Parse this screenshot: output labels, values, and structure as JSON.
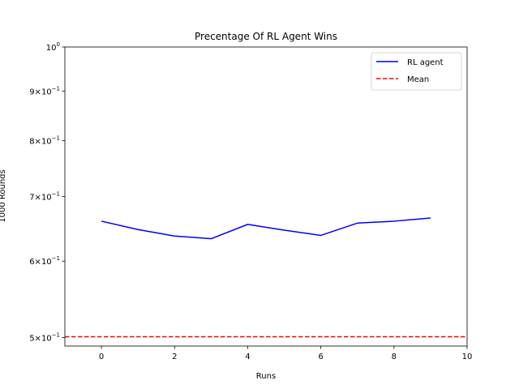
{
  "chart_data": {
    "type": "line",
    "title": "Precentage Of RL Agent Wins",
    "xlabel": "Runs",
    "ylabel": "1000 Rounds",
    "xlim": [
      -1,
      10
    ],
    "ylim": [
      0.49,
      1.0
    ],
    "yscale": "log",
    "x_ticks": [
      0,
      2,
      4,
      6,
      8,
      10
    ],
    "x_tick_labels": [
      "0",
      "2",
      "4",
      "6",
      "8",
      "10"
    ],
    "y_ticks": [
      {
        "value": 0.5,
        "mantissa": "5",
        "base": "10",
        "exp": "−1"
      },
      {
        "value": 0.6,
        "mantissa": "6",
        "base": "10",
        "exp": "−1"
      },
      {
        "value": 0.7,
        "mantissa": "7",
        "base": "10",
        "exp": "−1"
      },
      {
        "value": 0.8,
        "mantissa": "8",
        "base": "10",
        "exp": "−1"
      },
      {
        "value": 0.9,
        "mantissa": "9",
        "base": "10",
        "exp": "−1"
      },
      {
        "value": 1.0,
        "mantissa": "",
        "base": "10",
        "exp": "0"
      }
    ],
    "grid": false,
    "legend_position": "top-right",
    "series": [
      {
        "name": "RL agent",
        "color": "#0000ff",
        "style": "solid",
        "x": [
          0,
          1,
          2,
          3,
          4,
          5,
          6,
          7,
          8,
          9
        ],
        "y": [
          0.66,
          0.647,
          0.637,
          0.633,
          0.655,
          0.646,
          0.638,
          0.657,
          0.66,
          0.665
        ]
      },
      {
        "name": "Mean",
        "color": "#ff0000",
        "style": "dashed",
        "y_const": 0.501
      }
    ]
  }
}
